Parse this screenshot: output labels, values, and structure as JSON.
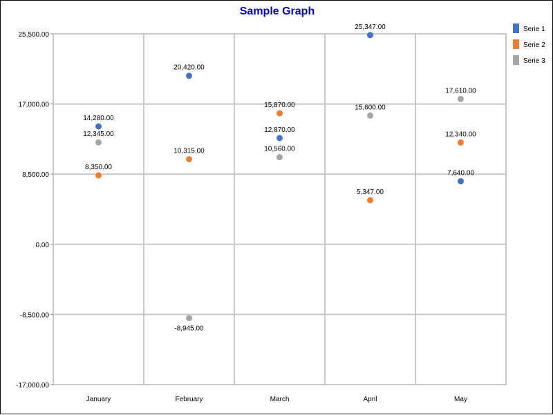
{
  "chart_data": {
    "type": "scatter",
    "title": "Sample Graph",
    "categories": [
      "January",
      "February",
      "March",
      "April",
      "May"
    ],
    "ylim": [
      -17000,
      25500
    ],
    "yticks": [
      25500,
      17000,
      8500,
      0,
      -8500,
      -17000
    ],
    "ytick_labels": [
      "25,500.00",
      "17,000.00",
      "8,500.00",
      "0.00",
      "-8,500.00",
      "-17,000.00"
    ],
    "grid": true,
    "legend_position": "top-right",
    "series": [
      {
        "name": "Serie 1",
        "color": "#4472c4",
        "values": [
          14280,
          20420,
          12870,
          25347,
          7640
        ],
        "labels": [
          "14,280.00",
          "20,420.00",
          "12,870.00",
          "25,347.00",
          "7,640.00"
        ]
      },
      {
        "name": "Serie 2",
        "color": "#ed7d31",
        "values": [
          8350,
          10315,
          15870,
          5347,
          12340
        ],
        "labels": [
          "8,350.00",
          "10,315.00",
          "15,870.00",
          "5,347.00",
          "12,340.00"
        ]
      },
      {
        "name": "Serie 3",
        "color": "#a5a5a5",
        "values": [
          12345,
          -8945,
          10560,
          15600,
          17610
        ],
        "labels": [
          "12,345.00",
          "-8,945.00",
          "10,560.00",
          "15,600.00",
          "17,610.00"
        ]
      }
    ]
  }
}
